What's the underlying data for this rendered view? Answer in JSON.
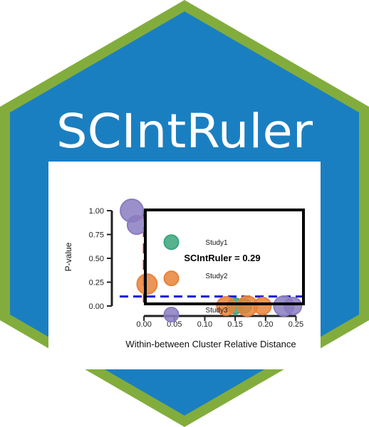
{
  "logo": {
    "title": "SCIntRuler",
    "colors": {
      "hex_border": "#82ad3d",
      "hex_fill": "#1a7fc1",
      "title_text": "#ffffff",
      "plot_panel": "#ffffff",
      "study1": "#3aa47c",
      "study2": "#e8823a",
      "study3": "#8a7cc0",
      "threshold_line": "#1414d2",
      "ruler_line": "#d21414",
      "axis": "#222222",
      "box": "#000000"
    }
  },
  "chart_data": {
    "type": "scatter",
    "title": "",
    "xlabel": "Within-between Cluster Relative Distance",
    "ylabel": "P-value",
    "xlim": [
      -0.04,
      0.26
    ],
    "ylim": [
      -0.03,
      1.03
    ],
    "x_ticks": [
      {
        "value": 0.0,
        "label": "0.00"
      },
      {
        "value": 0.05,
        "label": "0.05"
      },
      {
        "value": 0.1,
        "label": "0.10"
      },
      {
        "value": 0.15,
        "label": "0.15"
      },
      {
        "value": 0.2,
        "label": "0.20"
      },
      {
        "value": 0.25,
        "label": "0.25"
      }
    ],
    "y_ticks": [
      {
        "value": 0.0,
        "label": "0.00"
      },
      {
        "value": 0.25,
        "label": "0.25"
      },
      {
        "value": 0.5,
        "label": "0.50"
      },
      {
        "value": 0.75,
        "label": "0.75"
      },
      {
        "value": 1.0,
        "label": "1.00"
      }
    ],
    "grid": false,
    "threshold_y": 0.1,
    "ruler_x": 0.0,
    "annotation": "SCIntRuler = 0.29",
    "series": [
      {
        "name": "Study1",
        "color": "#3aa47c",
        "points": [
          [
            0.045,
            0.67,
            1.0
          ],
          [
            0.15,
            0.0,
            1.1
          ],
          [
            0.165,
            0.0,
            1.0
          ]
        ]
      },
      {
        "name": "Study2",
        "color": "#e8823a",
        "points": [
          [
            0.005,
            0.23,
            1.4
          ],
          [
            0.045,
            0.29,
            1.0
          ],
          [
            0.135,
            0.0,
            1.3
          ],
          [
            0.17,
            0.0,
            1.4
          ],
          [
            0.195,
            0.0,
            1.2
          ]
        ]
      },
      {
        "name": "Study3",
        "color": "#8a7cc0",
        "points": [
          [
            -0.02,
            1.0,
            1.6
          ],
          [
            -0.012,
            0.85,
            1.3
          ],
          [
            0.045,
            -0.09,
            1.0
          ],
          [
            0.23,
            0.0,
            1.4
          ],
          [
            0.245,
            0.0,
            1.2
          ]
        ]
      }
    ]
  }
}
